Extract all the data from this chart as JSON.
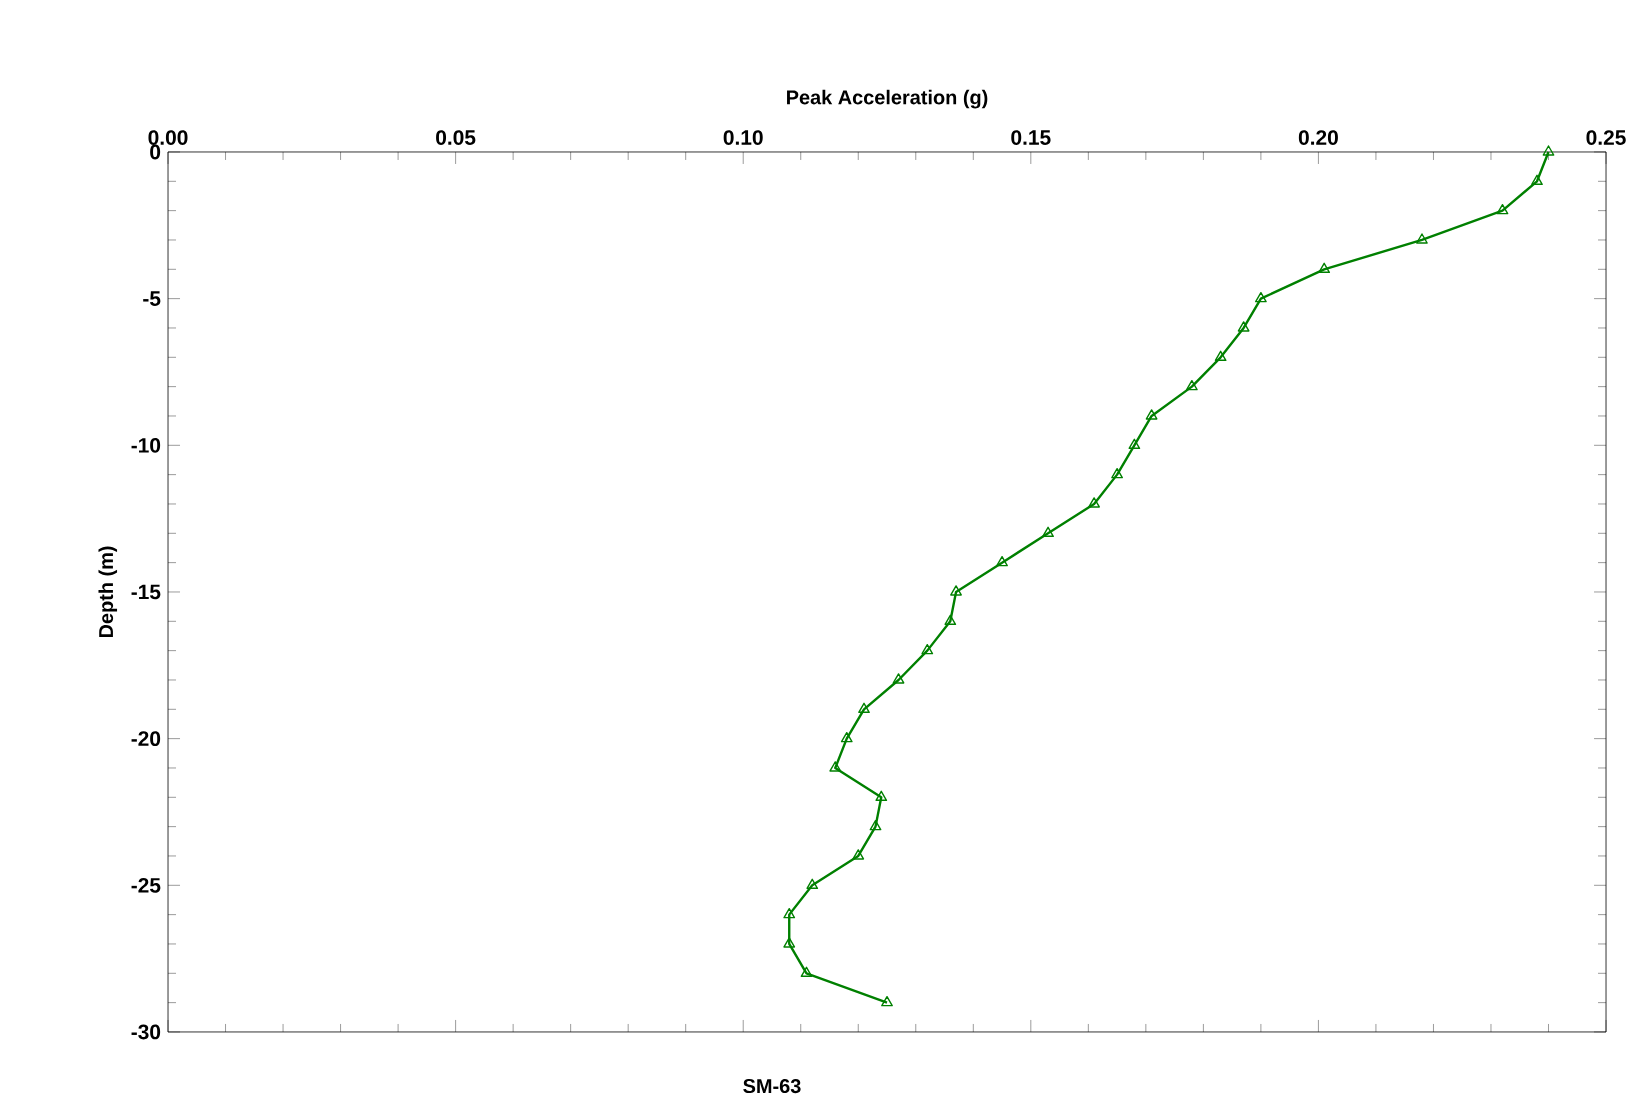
{
  "chart_data": {
    "type": "line",
    "xlabel": "Peak Acceleration (g)",
    "ylabel": "Depth (m)",
    "annotations": [
      "SM-63"
    ],
    "x": [
      0.24,
      0.238,
      0.232,
      0.218,
      0.201,
      0.19,
      0.187,
      0.183,
      0.178,
      0.171,
      0.168,
      0.165,
      0.161,
      0.153,
      0.145,
      0.137,
      0.136,
      0.132,
      0.127,
      0.121,
      0.118,
      0.116,
      0.124,
      0.123,
      0.12,
      0.112,
      0.108,
      0.108,
      0.111,
      0.125
    ],
    "values": [
      0,
      -1,
      -2,
      -3,
      -4,
      -5,
      -6,
      -7,
      -8,
      -9,
      -10,
      -11,
      -12,
      -13,
      -14,
      -15,
      -16,
      -17,
      -18,
      -19,
      -20,
      -21,
      -22,
      -23,
      -24,
      -25,
      -26,
      -27,
      -28,
      -29
    ],
    "color": "#008000",
    "marker": "triangle",
    "line_style": "solid",
    "xlim": [
      0,
      0.25
    ],
    "ylim": [
      -30,
      0
    ],
    "xticks": [
      {
        "value": 0,
        "label": "0.00"
      },
      {
        "value": 0.05,
        "label": "0.05"
      },
      {
        "value": 0.1,
        "label": "0.10"
      },
      {
        "value": 0.15,
        "label": "0.15"
      },
      {
        "value": 0.2,
        "label": "0.20"
      },
      {
        "value": 0.25,
        "label": "0.25"
      }
    ],
    "yticks": [
      -30,
      -25,
      -20,
      -15,
      -10,
      -5,
      0
    ]
  }
}
